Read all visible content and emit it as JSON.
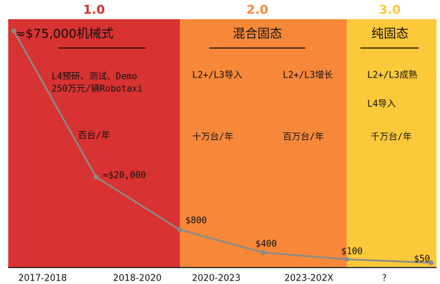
{
  "phases": [
    {
      "header": "1.0",
      "title": "≈$75,000机械式",
      "items": [
        "L4预研、测试、Demo",
        "250万元/辆Robotaxi",
        "百台/年"
      ]
    },
    {
      "header": "2.0",
      "title": "混合固态",
      "items": [
        "L2+/L3导入",
        "L2+/L3增长",
        "十万台/年",
        "百万台/年"
      ]
    },
    {
      "header": "3.0",
      "title": "纯固态",
      "items": [
        "L2+/L3成熟",
        "L4导入",
        "千万台/年"
      ]
    }
  ],
  "cost_points": [
    "≈$20,000",
    "$800",
    "$400",
    "$100",
    "$50"
  ],
  "timeline": [
    "2017-2018",
    "2018-2020",
    "2020-2023",
    "2023-202X",
    "?"
  ]
}
